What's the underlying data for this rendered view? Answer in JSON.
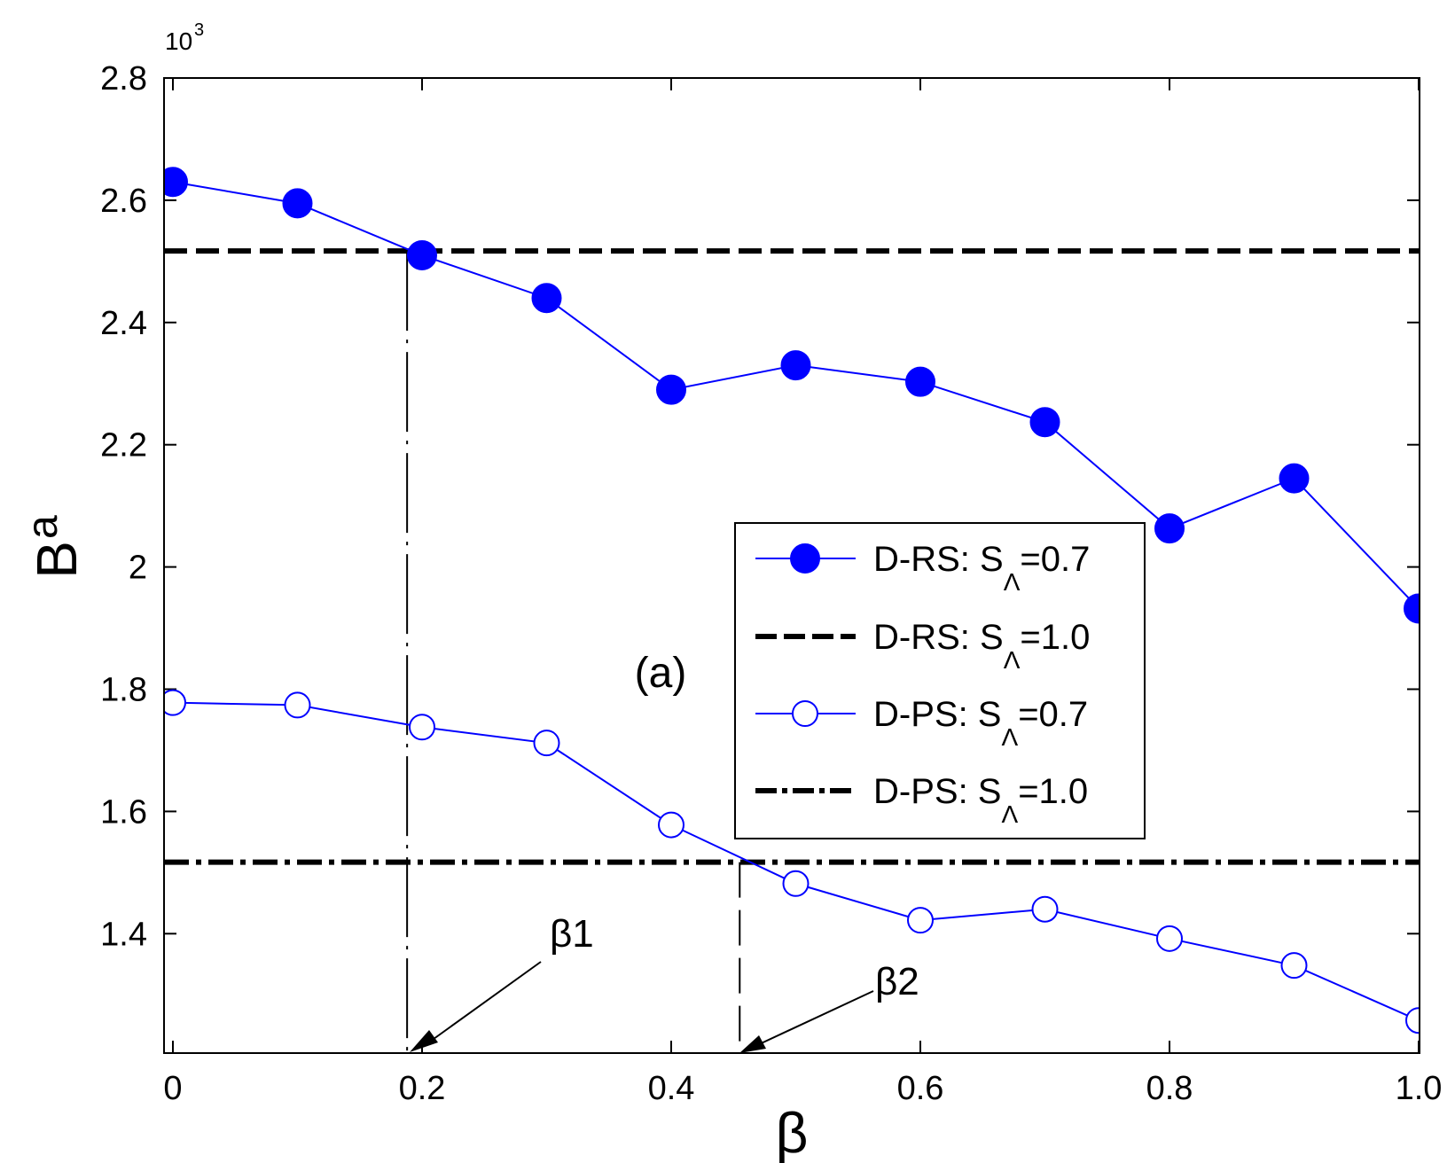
{
  "chart_data": {
    "type": "line",
    "title": "",
    "xlabel": "β",
    "ylabel": "B",
    "ylabel_superscript": "a",
    "y_scale_label": "10",
    "y_scale_exponent": "3",
    "xlim": [
      0,
      1.0
    ],
    "ylim": [
      1.2,
      2.8
    ],
    "x_ticks": [
      {
        "value": 0,
        "label": "0"
      },
      {
        "value": 0.2,
        "label": "0.2"
      },
      {
        "value": 0.4,
        "label": "0.4"
      },
      {
        "value": 0.6,
        "label": "0.6"
      },
      {
        "value": 0.8,
        "label": "0.8"
      },
      {
        "value": 1.0,
        "label": "1.0"
      }
    ],
    "y_ticks": [
      {
        "value": 1.4,
        "label": "1.4"
      },
      {
        "value": 1.6,
        "label": "1.6"
      },
      {
        "value": 1.8,
        "label": "1.8"
      },
      {
        "value": 2.0,
        "label": "2"
      },
      {
        "value": 2.2,
        "label": "2.2"
      },
      {
        "value": 2.4,
        "label": "2.4"
      },
      {
        "value": 2.6,
        "label": "2.6"
      },
      {
        "value": 2.8,
        "label": "2.8"
      }
    ],
    "x": [
      0,
      0.1,
      0.2,
      0.3,
      0.4,
      0.5,
      0.6,
      0.7,
      0.8,
      0.9,
      1.0
    ],
    "series": [
      {
        "key": "drs07",
        "legend_main": "D-RS: S",
        "legend_sub": "Λ",
        "legend_tail": "=0.7",
        "style": "filled-marker",
        "color": "#0000ff",
        "values": [
          2.63,
          2.595,
          2.51,
          2.44,
          2.29,
          2.33,
          2.303,
          2.237,
          2.063,
          2.145,
          1.932
        ]
      },
      {
        "key": "drs10",
        "legend_main": "D-RS: S",
        "legend_sub": "Λ",
        "legend_tail": "=1.0",
        "style": "dashed",
        "color": "#000000",
        "constant": 2.517
      },
      {
        "key": "dps07",
        "legend_main": "D-PS: S",
        "legend_sub": "Λ",
        "legend_tail": "=0.7",
        "style": "open-marker",
        "color": "#0000ff",
        "values": [
          1.778,
          1.774,
          1.738,
          1.712,
          1.578,
          1.482,
          1.422,
          1.44,
          1.392,
          1.348,
          1.258
        ]
      },
      {
        "key": "dps10",
        "legend_main": "D-PS: S",
        "legend_sub": "Λ",
        "legend_tail": "=1.0",
        "style": "dash-dot",
        "color": "#000000",
        "constant": 1.517
      }
    ],
    "annotations": {
      "panel_label": "(a)",
      "beta1": {
        "label": "β1",
        "x": 0.188
      },
      "beta2": {
        "label": "β2",
        "x": 0.455
      }
    },
    "legend_position": "center-right",
    "grid": false
  }
}
